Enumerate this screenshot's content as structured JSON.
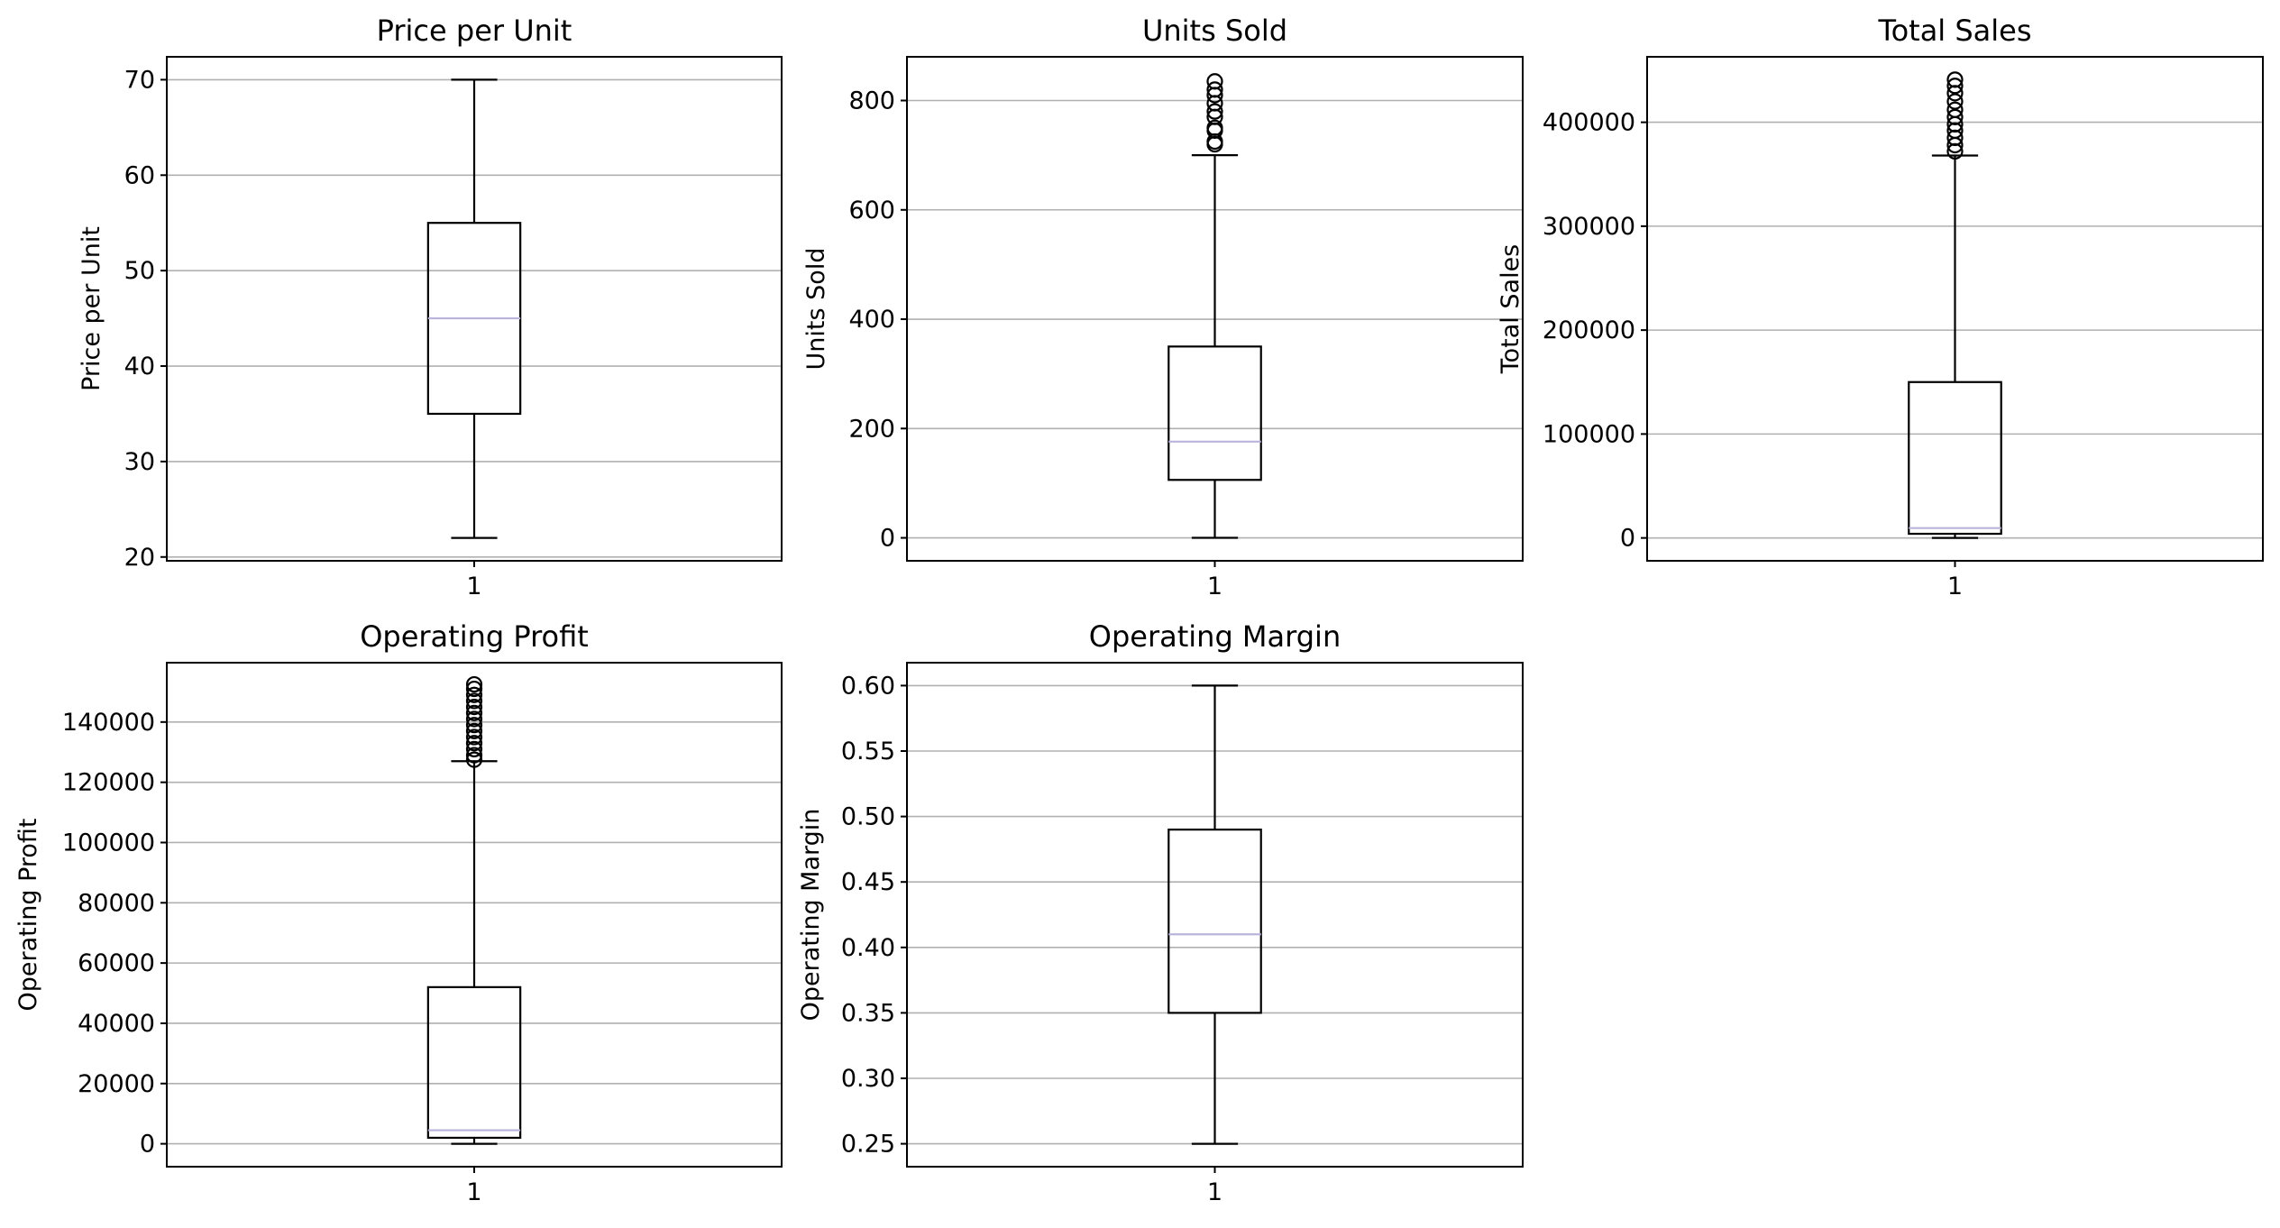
{
  "colors": {
    "median": "#b8b4dc",
    "grid": "#b0b0b0",
    "box": "#000000"
  },
  "chart_data": [
    {
      "type": "boxplot",
      "title": "Price per Unit",
      "ylabel": "Price per Unit",
      "xticks": [
        "1"
      ],
      "ylim": [
        19.6,
        72.4
      ],
      "yticks": [
        20,
        30,
        40,
        50,
        60,
        70
      ],
      "ytick_labels": [
        "20",
        "30",
        "40",
        "50",
        "60",
        "70"
      ],
      "grid": "y",
      "box": {
        "whisker_low": 22,
        "q1": 35,
        "median": 45,
        "q3": 55,
        "whisker_high": 70,
        "fliers": []
      }
    },
    {
      "type": "boxplot",
      "title": "Units Sold",
      "ylabel": "Units Sold",
      "xticks": [
        "1"
      ],
      "ylim": [
        -42,
        880
      ],
      "yticks": [
        0,
        200,
        400,
        600,
        800
      ],
      "ytick_labels": [
        "0",
        "200",
        "400",
        "600",
        "800"
      ],
      "grid": "y",
      "box": {
        "whisker_low": 0,
        "q1": 106,
        "median": 176,
        "q3": 350,
        "whisker_high": 700,
        "fliers": [
          720,
          725,
          745,
          750,
          770,
          780,
          795,
          810,
          820,
          835
        ]
      }
    },
    {
      "type": "boxplot",
      "title": "Total Sales",
      "ylabel": "Total Sales",
      "xticks": [
        "1"
      ],
      "ylim": [
        -22000,
        463000
      ],
      "yticks": [
        0,
        100000,
        200000,
        300000,
        400000
      ],
      "ytick_labels": [
        "0",
        "100000",
        "200000",
        "300000",
        "400000"
      ],
      "grid": "y",
      "box": {
        "whisker_low": 0,
        "q1": 4000,
        "median": 9500,
        "q3": 150000,
        "whisker_high": 368000,
        "fliers": [
          372000,
          378000,
          385000,
          392000,
          398000,
          405000,
          412000,
          420000,
          428000,
          435000,
          441000
        ]
      }
    },
    {
      "type": "boxplot",
      "title": "Operating Profit",
      "ylabel": "Operating Profit",
      "xticks": [
        "1"
      ],
      "ylim": [
        -7600,
        159700
      ],
      "yticks": [
        0,
        20000,
        40000,
        60000,
        80000,
        100000,
        120000,
        140000
      ],
      "ytick_labels": [
        "0",
        "20000",
        "40000",
        "60000",
        "80000",
        "100000",
        "120000",
        "140000"
      ],
      "grid": "y",
      "box": {
        "whisker_low": 0,
        "q1": 2000,
        "median": 4500,
        "q3": 52000,
        "whisker_high": 127000,
        "fliers": [
          127500,
          129000,
          131000,
          133000,
          135000,
          137000,
          139000,
          141000,
          143000,
          145000,
          147000,
          149000,
          151000,
          152500
        ]
      }
    },
    {
      "type": "boxplot",
      "title": "Operating Margin",
      "ylabel": "Operating Margin",
      "xticks": [
        "1"
      ],
      "ylim": [
        0.2325,
        0.6175
      ],
      "yticks": [
        0.25,
        0.3,
        0.35,
        0.4,
        0.45,
        0.5,
        0.55,
        0.6
      ],
      "ytick_labels": [
        "0.25",
        "0.30",
        "0.35",
        "0.40",
        "0.45",
        "0.50",
        "0.55",
        "0.60"
      ],
      "grid": "y",
      "box": {
        "whisker_low": 0.25,
        "q1": 0.35,
        "median": 0.41,
        "q3": 0.49,
        "whisker_high": 0.6,
        "fliers": []
      }
    }
  ]
}
